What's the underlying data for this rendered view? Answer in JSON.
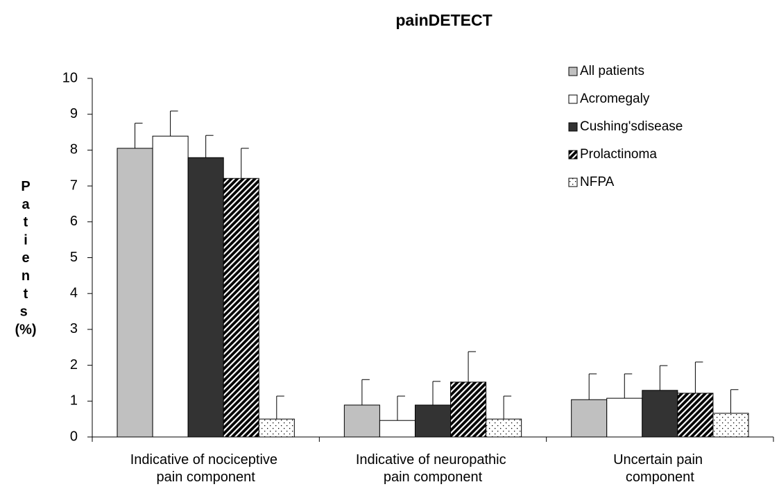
{
  "chart_data": {
    "type": "bar",
    "title": "painDETECT",
    "y_label": "Patients (%)",
    "categories": [
      "Indicative of nociceptive pain component",
      "Indicative of neuropathic pain component",
      "Uncertain pain component"
    ],
    "series": [
      {
        "name": "All patients",
        "color": "#c0c0c0",
        "values": [
          8.05,
          0.89,
          1.04
        ],
        "errors": [
          0.7,
          0.71,
          0.72
        ]
      },
      {
        "name": "Acromegaly",
        "color": "#ffffff",
        "values": [
          8.39,
          0.46,
          1.08
        ],
        "errors": [
          0.7,
          0.68,
          0.68
        ]
      },
      {
        "name": "Cushing'sdisease",
        "color": "#333333",
        "values": [
          7.79,
          0.89,
          1.3
        ],
        "errors": [
          0.62,
          0.66,
          0.69
        ]
      },
      {
        "name": "Prolactinoma",
        "color": "#000000",
        "pattern": "hatch",
        "values": [
          7.21,
          1.53,
          1.22
        ],
        "errors": [
          0.84,
          0.85,
          0.87
        ]
      },
      {
        "name": "NFPA",
        "color": "#ffffff",
        "pattern": "dots",
        "values": [
          0.5,
          0.5,
          0.66
        ],
        "errors": [
          0.64,
          0.64,
          0.66
        ]
      }
    ],
    "ylim": [
      0,
      10
    ],
    "yticks": [
      0,
      1,
      2,
      3,
      4,
      5,
      6,
      7,
      8,
      9,
      10
    ],
    "legend": "top-right"
  }
}
